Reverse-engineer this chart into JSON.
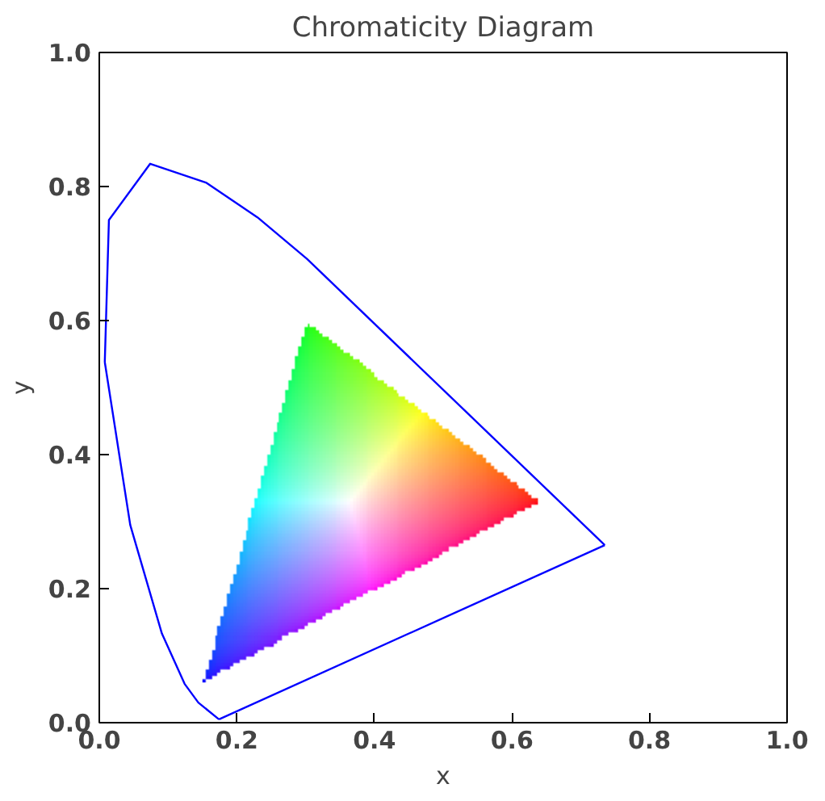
{
  "chart_data": {
    "type": "line",
    "title": "Chromaticity Diagram",
    "xlabel": "x",
    "ylabel": "y",
    "xlim": [
      0,
      1
    ],
    "ylim": [
      0,
      1
    ],
    "xticks": [
      {
        "value": 0,
        "label": "0.0"
      },
      0.2,
      0.4,
      0.6,
      0.8,
      {
        "value": 1,
        "label": "1.0"
      }
    ],
    "yticks": [
      {
        "value": 0,
        "label": "0.0"
      },
      0.2,
      0.4,
      0.6,
      0.8,
      {
        "value": 1,
        "label": "1.0"
      }
    ],
    "grid": false,
    "series": [
      {
        "color": "#0000ff",
        "x": [
          0.008,
          0.045,
          0.091,
          0.124,
          0.144,
          0.174,
          null,
          0.008,
          0.014,
          0.074,
          0.155,
          0.23,
          0.302,
          0.735,
          null,
          0.174,
          0.735
        ],
        "values": [
          0.538,
          0.295,
          0.133,
          0.058,
          0.03,
          0.005,
          null,
          0.538,
          0.75,
          0.834,
          0.806,
          0.754,
          0.692,
          0.265,
          null,
          0.005,
          0.265
        ]
      },
      {
        "type": "area",
        "x": [
          0.64,
          0.3,
          0.15
        ],
        "values": [
          0.33,
          0.6,
          0.06
        ]
      }
    ]
  }
}
